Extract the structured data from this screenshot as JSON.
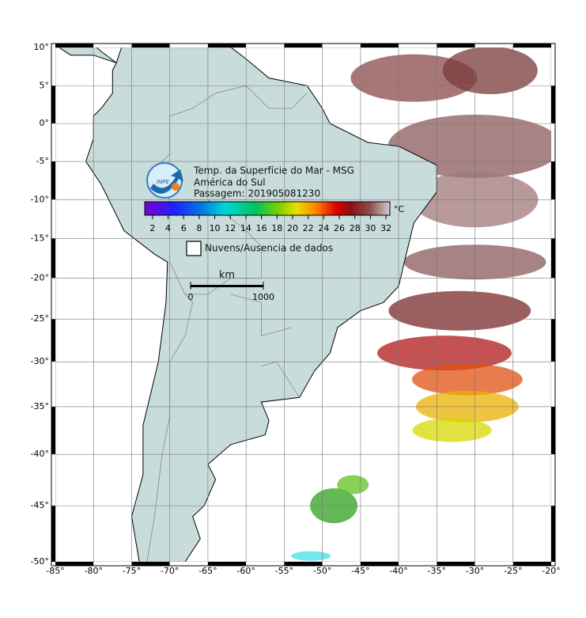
{
  "map": {
    "title_lines": [
      "Temp. da Superfície do Mar - MSG",
      "América do Sul",
      "Passagem: 201905081230"
    ],
    "logo": "INPE",
    "lonlim": [
      -85,
      -20
    ],
    "latlim": [
      -50,
      10
    ],
    "lon_ticks": [
      {
        "value": -85,
        "label": "-85°"
      },
      {
        "value": -80,
        "label": "-80°"
      },
      {
        "value": -75,
        "label": "-75°"
      },
      {
        "value": -70,
        "label": "-70°"
      },
      {
        "value": -65,
        "label": "-65°"
      },
      {
        "value": -60,
        "label": "-60°"
      },
      {
        "value": -55,
        "label": "-55°"
      },
      {
        "value": -50,
        "label": "-50°"
      },
      {
        "value": -45,
        "label": "-45°"
      },
      {
        "value": -40,
        "label": "-40°"
      },
      {
        "value": -35,
        "label": "-35°"
      },
      {
        "value": -30,
        "label": "-30°"
      },
      {
        "value": -25,
        "label": "-25°"
      },
      {
        "value": -20,
        "label": "-20°"
      }
    ],
    "lat_ticks": [
      {
        "value": 10,
        "label": "10°"
      },
      {
        "value": 5,
        "label": "5°"
      },
      {
        "value": 0,
        "label": "0°"
      },
      {
        "value": -5,
        "label": "-5°"
      },
      {
        "value": -10,
        "label": "-10°"
      },
      {
        "value": -15,
        "label": "-15°"
      },
      {
        "value": -20,
        "label": "-20°"
      },
      {
        "value": -25,
        "label": "-25°"
      },
      {
        "value": -30,
        "label": "-30°"
      },
      {
        "value": -35,
        "label": "-35°"
      },
      {
        "value": -40,
        "label": "-40°"
      },
      {
        "value": -45,
        "label": "-45°"
      },
      {
        "value": -50,
        "label": "-50°"
      }
    ],
    "colorbar": {
      "range": [
        1,
        32.5
      ],
      "ticks": [
        2,
        4,
        6,
        8,
        10,
        12,
        14,
        16,
        18,
        20,
        22,
        24,
        26,
        28,
        30,
        32
      ],
      "unit": "°C"
    },
    "legend": "Nuvens/Ausencia de dados",
    "scale_bar": {
      "unit": "km",
      "ticks": [
        0,
        1000
      ]
    }
  }
}
